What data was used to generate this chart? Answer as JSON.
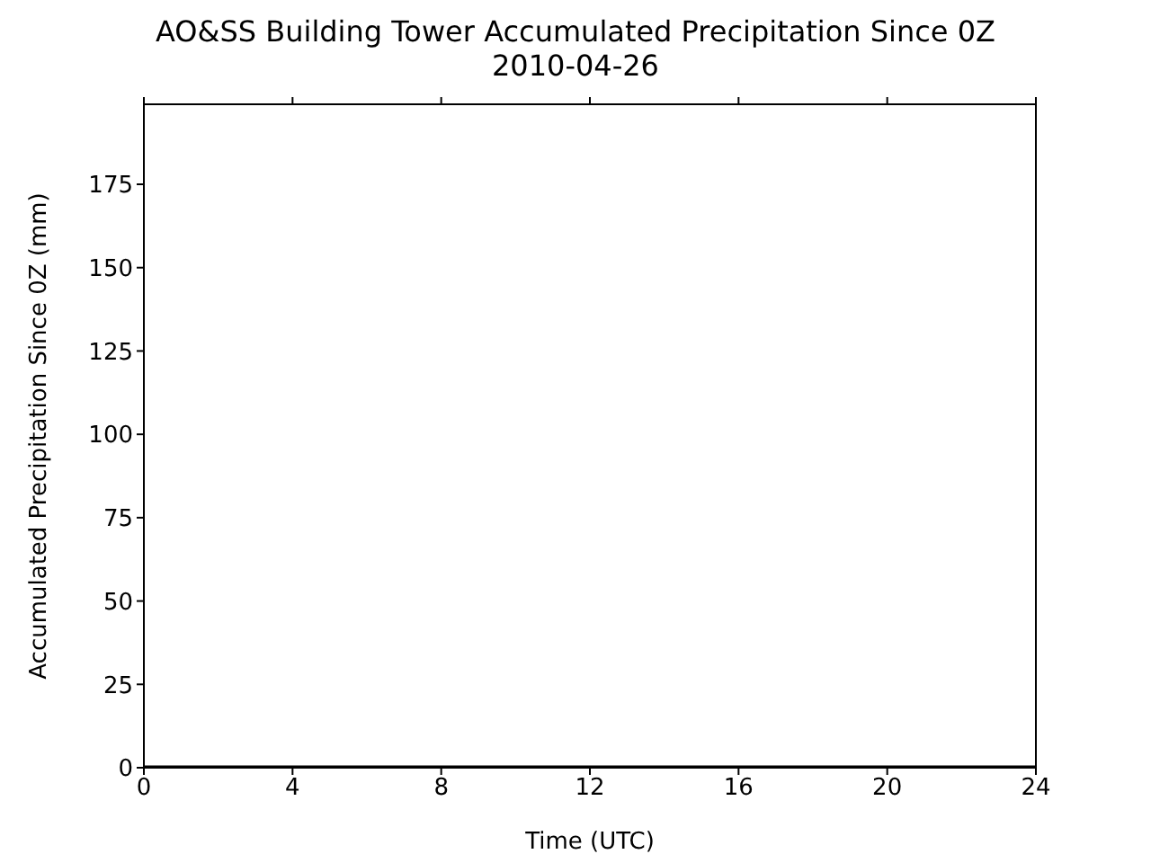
{
  "chart_data": {
    "type": "line",
    "title": "AO&SS Building Tower Accumulated Precipitation Since 0Z",
    "subtitle": "2010-04-26",
    "xlabel": "Time (UTC)",
    "ylabel": "Accumulated Precipitation Since 0Z (mm)",
    "x": [
      0,
      24
    ],
    "series": [
      {
        "color": "#000000",
        "values": [
          0,
          0
        ]
      }
    ],
    "xlim": [
      0,
      24
    ],
    "xticks": [
      0,
      4,
      8,
      12,
      16,
      20,
      24
    ],
    "ylim": [
      0,
      199
    ],
    "yticks": [
      0,
      25,
      50,
      75,
      100,
      125,
      150,
      175
    ],
    "legend": false,
    "marker": "none",
    "line_style": "solid"
  }
}
